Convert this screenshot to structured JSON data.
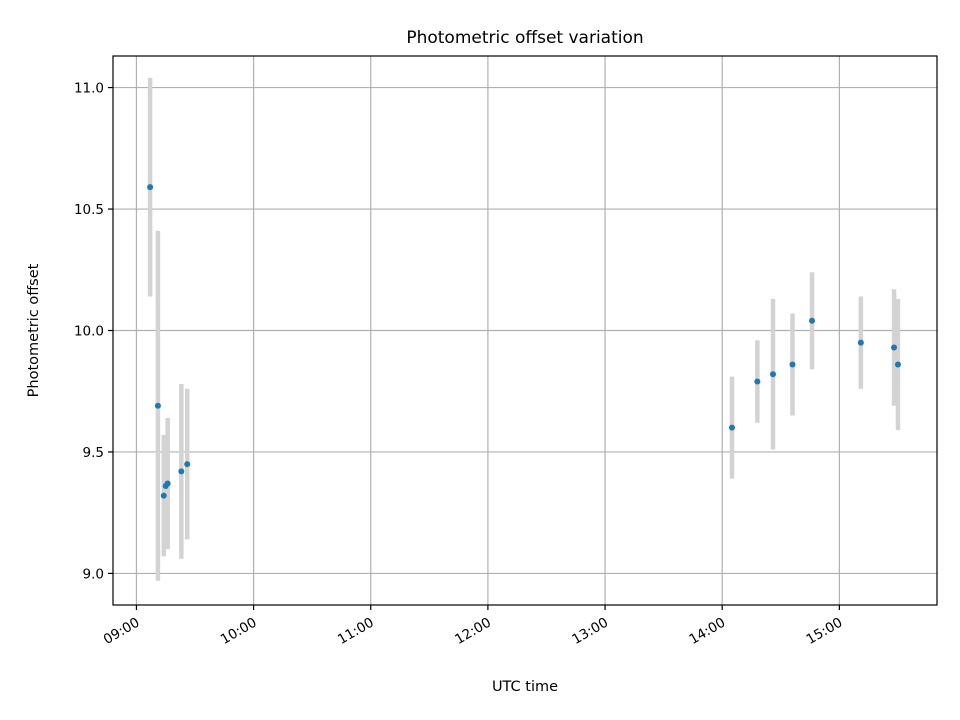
{
  "chart_data": {
    "type": "scatter",
    "title": "Photometric offset variation",
    "xlabel": "UTC time",
    "ylabel": "Photometric offset",
    "x_ticks": [
      "09:00",
      "10:00",
      "11:00",
      "12:00",
      "13:00",
      "14:00",
      "15:00"
    ],
    "y_ticks": [
      "9.0",
      "9.5",
      "10.0",
      "10.5",
      "11.0"
    ],
    "xlim": [
      "08:48",
      "15:50"
    ],
    "ylim": [
      8.87,
      11.13
    ],
    "grid": true,
    "marker_color": "#1f77b4",
    "errorbar_color": "#d3d3d3",
    "points": [
      {
        "time": "09:07",
        "y": 10.59,
        "err": 0.45
      },
      {
        "time": "09:11",
        "y": 9.69,
        "err": 0.72
      },
      {
        "time": "09:14",
        "y": 9.32,
        "err": 0.25
      },
      {
        "time": "09:15",
        "y": 9.36,
        "err": 0.21
      },
      {
        "time": "09:16",
        "y": 9.37,
        "err": 0.27
      },
      {
        "time": "09:23",
        "y": 9.42,
        "err": 0.36
      },
      {
        "time": "09:26",
        "y": 9.45,
        "err": 0.31
      },
      {
        "time": "14:05",
        "y": 9.6,
        "err": 0.21
      },
      {
        "time": "14:18",
        "y": 9.79,
        "err": 0.17
      },
      {
        "time": "14:26",
        "y": 9.82,
        "err": 0.31
      },
      {
        "time": "14:36",
        "y": 9.86,
        "err": 0.21
      },
      {
        "time": "14:46",
        "y": 10.04,
        "err": 0.2
      },
      {
        "time": "15:11",
        "y": 9.95,
        "err": 0.19
      },
      {
        "time": "15:28",
        "y": 9.93,
        "err": 0.24
      },
      {
        "time": "15:30",
        "y": 9.86,
        "err": 0.27
      }
    ]
  }
}
